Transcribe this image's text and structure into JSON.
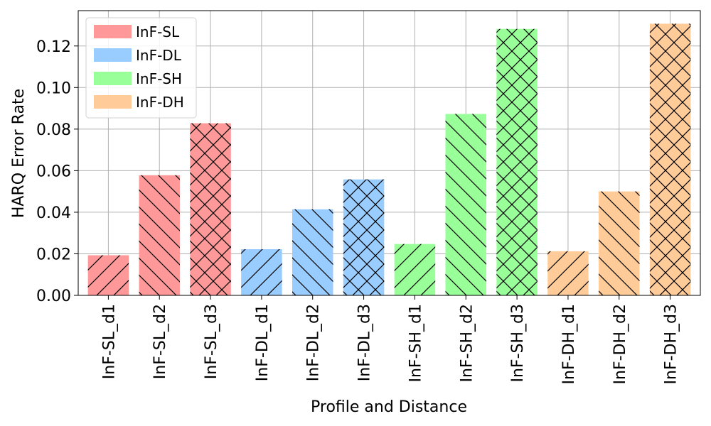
{
  "chart_data": {
    "type": "bar",
    "title": "",
    "xlabel": "Profile and Distance",
    "ylabel": "HARQ Error Rate",
    "categories": [
      "InF-SL_d1",
      "InF-SL_d2",
      "InF-SL_d3",
      "InF-DL_d1",
      "InF-DL_d2",
      "InF-DL_d3",
      "InF-SH_d1",
      "InF-SH_d2",
      "InF-SH_d3",
      "InF-DH_d1",
      "InF-DH_d2",
      "InF-DH_d3"
    ],
    "values": [
      0.0193,
      0.0578,
      0.0828,
      0.0222,
      0.0414,
      0.0558,
      0.0247,
      0.0873,
      0.1282,
      0.0212,
      0.05,
      0.1307
    ],
    "bar_groups": [
      "InF-SL",
      "InF-SL",
      "InF-SL",
      "InF-DL",
      "InF-DL",
      "InF-DL",
      "InF-SH",
      "InF-SH",
      "InF-SH",
      "InF-DH",
      "InF-DH",
      "InF-DH"
    ],
    "bar_hatches": [
      "/",
      "\\",
      "x",
      "/",
      "\\",
      "x",
      "/",
      "\\",
      "x",
      "/",
      "\\",
      "x"
    ],
    "ylim": [
      0,
      0.137
    ],
    "yticks": [
      "0.00",
      "0.02",
      "0.04",
      "0.06",
      "0.08",
      "0.10",
      "0.12"
    ],
    "grid": true,
    "legend_position": "top-left",
    "legend": [
      {
        "label": "InF-SL",
        "color": "#ff9999"
      },
      {
        "label": "InF-DL",
        "color": "#99ccff"
      },
      {
        "label": "InF-SH",
        "color": "#99ff99"
      },
      {
        "label": "InF-DH",
        "color": "#ffcc99"
      }
    ]
  }
}
